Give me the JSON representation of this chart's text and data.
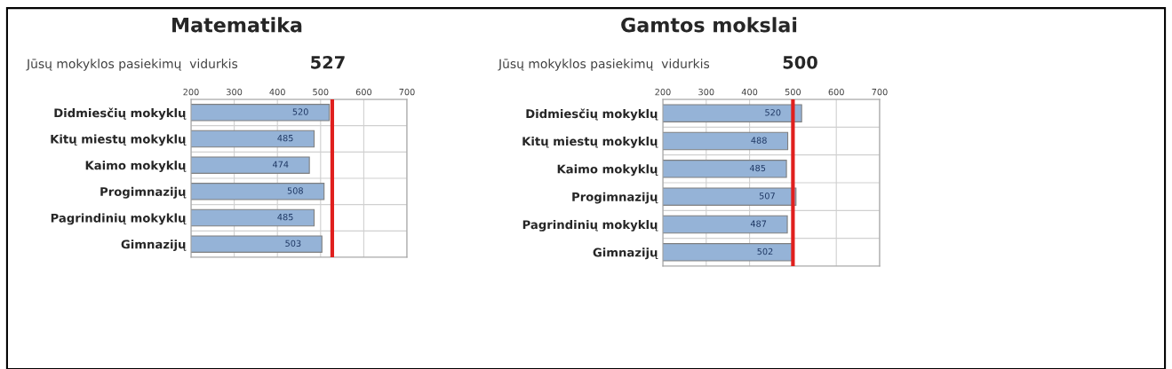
{
  "chart_data": [
    {
      "type": "bar",
      "orientation": "horizontal",
      "title": "Matematika",
      "subtitle": "Jūsų mokyklos pasiekimų  vidurkis",
      "categories": [
        "Didmiesčių mokyklų",
        "Kitų miestų mokyklų",
        "Kaimo mokyklų",
        "Progimnazijų",
        "Pagrindinių mokyklų",
        "Gimnazijų"
      ],
      "values": [
        520,
        485,
        474,
        508,
        485,
        503
      ],
      "color": "#95b3d7",
      "data_labels": true,
      "xlim": [
        200,
        700
      ],
      "xticks": [
        200,
        300,
        400,
        500,
        600,
        700
      ],
      "grid": true,
      "ref_lines": [
        {
          "axis": "x",
          "value": 527,
          "label": "527",
          "color": "#e0201e"
        }
      ]
    },
    {
      "type": "bar",
      "orientation": "horizontal",
      "title": "Gamtos mokslai",
      "subtitle": "Jūsų mokyklos pasiekimų  vidurkis",
      "categories": [
        "Didmiesčių mokyklų",
        "Kitų miestų mokyklų",
        "Kaimo mokyklų",
        "Progimnazijų",
        "Pagrindinių mokyklų",
        "Gimnazijų"
      ],
      "values": [
        520,
        488,
        485,
        507,
        487,
        502
      ],
      "color": "#95b3d7",
      "data_labels": true,
      "xlim": [
        200,
        700
      ],
      "xticks": [
        200,
        300,
        400,
        500,
        600,
        700
      ],
      "grid": true,
      "ref_lines": [
        {
          "axis": "x",
          "value": 500,
          "label": "500",
          "color": "#e0201e"
        }
      ]
    }
  ]
}
